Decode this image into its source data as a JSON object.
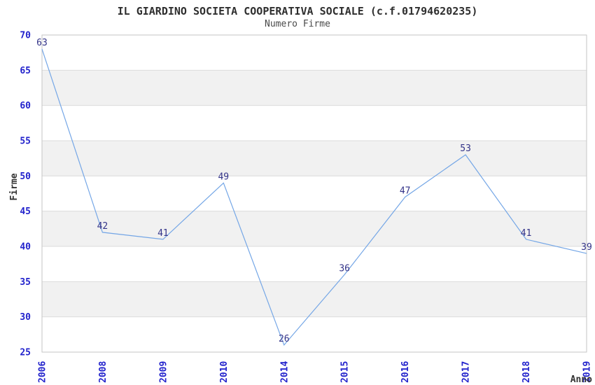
{
  "chart_data": {
    "type": "line",
    "title": "IL GIARDINO SOCIETA COOPERATIVA SOCIALE (c.f.01794620235)",
    "subtitle": "Numero Firme",
    "xlabel": "Anno",
    "ylabel": "Firme",
    "categories": [
      "2006",
      "2008",
      "2009",
      "2010",
      "2014",
      "2015",
      "2016",
      "2017",
      "2018",
      "2019"
    ],
    "values": [
      63,
      42,
      41,
      49,
      26,
      36,
      47,
      53,
      41,
      39
    ],
    "ylim": [
      25,
      70
    ],
    "ytick_step": 5,
    "yticks": [
      70,
      65,
      60,
      55,
      50,
      45,
      40,
      35,
      30,
      25
    ],
    "grid": "horizontal",
    "legend": "none",
    "alternating_bands": true,
    "x_tick_rotation_deg": 90,
    "colors": {
      "line": "#74a6e6",
      "tick_labels": "#2222cc",
      "data_labels": "#333388",
      "band_fill": "#f1f1f1",
      "gridline": "#dcdcdc",
      "plot_border": "#c6c6c6",
      "axis_title": "#333333",
      "background": "#ffffff"
    },
    "layout_hints": {
      "first_point_rendered_at_value": 68,
      "data_labels_position": "above-point"
    }
  }
}
